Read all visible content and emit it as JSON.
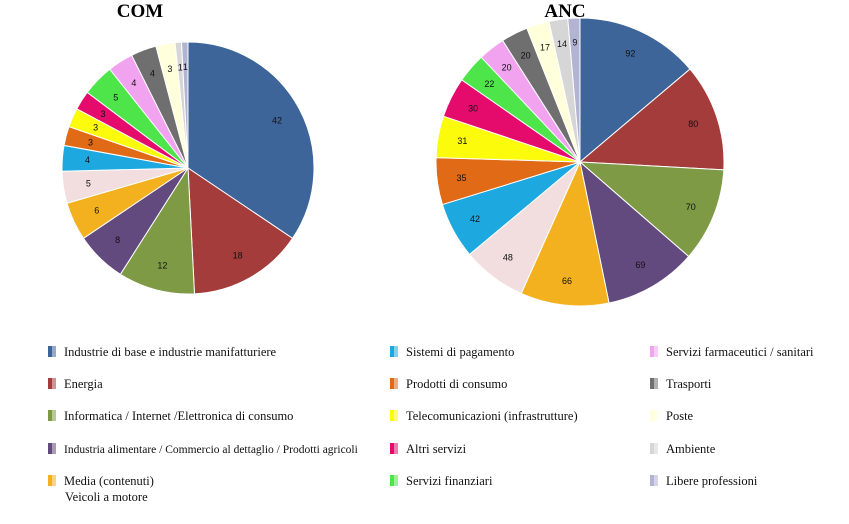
{
  "chart_data": [
    {
      "type": "pie",
      "title": "COM",
      "values": [
        42,
        18,
        12,
        8,
        6,
        5,
        4,
        3,
        3,
        3,
        5,
        4,
        4,
        3,
        1,
        1
      ],
      "labels": [
        "42",
        "18",
        "12",
        "8",
        "6",
        "5",
        "4",
        "3",
        "3",
        "3",
        "5",
        "4",
        "4",
        "3",
        "1",
        "1"
      ]
    },
    {
      "type": "pie",
      "title": "ANC",
      "values": [
        92,
        80,
        70,
        69,
        66,
        48,
        42,
        35,
        31,
        30,
        22,
        20,
        20,
        17,
        14,
        9
      ],
      "labels": [
        "92",
        "80",
        "70",
        "69",
        "66",
        "48",
        "42",
        "35",
        "31",
        "30",
        "22",
        "20",
        "20",
        "17",
        "14",
        "9"
      ]
    }
  ],
  "slice_colors": [
    "#3d6599",
    "#a33c3a",
    "#7e9a45",
    "#62497e",
    "#f3b11f",
    "#f2dede",
    "#1da9df",
    "#e06a16",
    "#fbfb0b",
    "#e50b6c",
    "#4de54a",
    "#f1a3f0",
    "#6f6f6f",
    "#ffffdc",
    "#d6d6d6",
    "#b3b3d3"
  ],
  "legend": [
    {
      "label": "Industrie di base e industrie manifatturiere",
      "color": "#3d6599"
    },
    {
      "label": "Energia",
      "color": "#a33c3a"
    },
    {
      "label": "Informatica / Internet /Elettronica di consumo",
      "color": "#7e9a45"
    },
    {
      "label": "Industria alimentare / Commercio al dettaglio / Prodotti agricoli",
      "color": "#62497e"
    },
    {
      "label": "Media (contenuti)",
      "label2": "Veicoli a motore",
      "color": "#f3b11f"
    },
    {
      "label": "Sistemi di pagamento",
      "color": "#1da9df"
    },
    {
      "label": "Prodotti di consumo",
      "color": "#e06a16"
    },
    {
      "label": "Telecomunicazioni (infrastrutture)",
      "color": "#fbfb0b"
    },
    {
      "label": "Altri servizi",
      "color": "#e50b6c"
    },
    {
      "label": "Servizi finanziari",
      "color": "#4de54a"
    },
    {
      "label": "Servizi farmaceutici / sanitari",
      "color": "#f1a3f0"
    },
    {
      "label": "Trasporti",
      "color": "#6f6f6f"
    },
    {
      "label": "Poste",
      "color": "#ffffdc"
    },
    {
      "label": "Ambiente",
      "color": "#d6d6d6"
    },
    {
      "label": "Libere professioni",
      "color": "#b3b3d3"
    }
  ]
}
